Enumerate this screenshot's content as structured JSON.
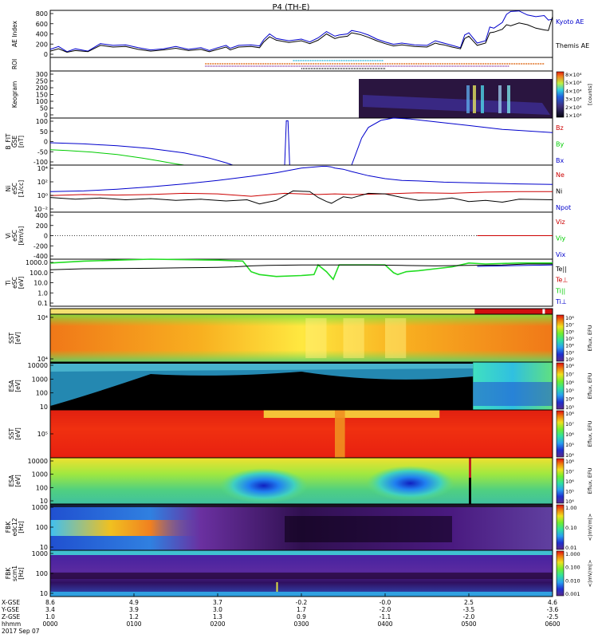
{
  "chart_data": {
    "type": "multi-panel summary plot",
    "title": "P4 (TH-E)",
    "panels": [
      {
        "id": "ae",
        "ylabel": [
          "AE Index"
        ],
        "yticks": [
          "800",
          "600",
          "400",
          "200",
          "0"
        ],
        "ylim": [
          -10,
          810
        ],
        "right_labels": [
          {
            "text": "Kyoto AE",
            "color": "#0000cc"
          },
          {
            "text": "Themis AE",
            "color": "#000000"
          }
        ],
        "series": [
          {
            "name": "Kyoto AE",
            "color": "#0000cc",
            "t": [
              0,
              10,
              20,
              30,
              45,
              60,
              75,
              90,
              105,
              120,
              135,
              150,
              165,
              180,
              190,
              200,
              210,
              215,
              225,
              240,
              250,
              255,
              262,
              270,
              285,
              300,
              310,
              320,
              330,
              340,
              345,
              355,
              360,
              370,
              380,
              390,
              400,
              410,
              420,
              435,
              450,
              460,
              465,
              470,
              480,
              490,
              495,
              500,
              510,
              520,
              525,
              530,
              540,
              545,
              550,
              560,
              570,
              580,
              590,
              595,
              600
            ],
            "v": [
              130,
              180,
              90,
              140,
              100,
              230,
              200,
              210,
              160,
              120,
              140,
              180,
              130,
              160,
              110,
              160,
              200,
              150,
              200,
              210,
              190,
              300,
              400,
              320,
              280,
              310,
              260,
              330,
              440,
              360,
              380,
              400,
              460,
              430,
              380,
              310,
              260,
              220,
              240,
              210,
              200,
              280,
              260,
              240,
              200,
              160,
              380,
              420,
              240,
              280,
              520,
              500,
              600,
              740,
              790,
              800,
              730,
              700,
              720,
              640,
              660
            ]
          },
          {
            "name": "Themis AE",
            "color": "#000000",
            "t": [
              0,
              10,
              20,
              30,
              45,
              60,
              75,
              90,
              105,
              120,
              135,
              150,
              165,
              180,
              190,
              200,
              210,
              215,
              225,
              240,
              250,
              255,
              262,
              270,
              285,
              300,
              310,
              320,
              330,
              340,
              345,
              355,
              360,
              370,
              380,
              390,
              400,
              410,
              420,
              435,
              450,
              460,
              465,
              470,
              480,
              490,
              495,
              500,
              510,
              520,
              525,
              530,
              540,
              545,
              550,
              560,
              570,
              580,
              590,
              595,
              600
            ],
            "v": [
              100,
              140,
              80,
              110,
              90,
              200,
              170,
              180,
              130,
              100,
              120,
              150,
              110,
              130,
              90,
              130,
              170,
              120,
              170,
              180,
              160,
              260,
              350,
              290,
              250,
              280,
              230,
              290,
              400,
              320,
              340,
              360,
              420,
              390,
              340,
              280,
              230,
              190,
              210,
              180,
              170,
              240,
              220,
              210,
              170,
              140,
              320,
              360,
              200,
              240,
              420,
              430,
              480,
              560,
              540,
              590,
              560,
              500,
              470,
              460,
              700
            ]
          }
        ]
      },
      {
        "id": "roi",
        "ylabel": [
          "ROI"
        ],
        "yticks": [],
        "ylim": [
          0,
          1
        ]
      },
      {
        "id": "keogram",
        "ylabel": [
          "Keogram"
        ],
        "yticks": [
          "300",
          "250",
          "200",
          "150",
          "100",
          "50",
          "0"
        ],
        "ylim": [
          0,
          300
        ],
        "colorbar": {
          "label": "[counts]",
          "ticks": [
            "8×10⁴",
            "5×10⁴",
            "4×10⁴",
            "3×10⁴",
            "2×10⁴",
            "1×10⁴"
          ]
        }
      },
      {
        "id": "bfit",
        "ylabel": [
          "B_FIT",
          "GSE",
          "[nT]"
        ],
        "yticks": [
          "100",
          "50",
          "0",
          "-50",
          "-100"
        ],
        "ylim": [
          -100,
          100
        ],
        "right_labels": [
          {
            "text": "Bz",
            "color": "#cc0000"
          },
          {
            "text": "By",
            "color": "#00cc00"
          },
          {
            "text": "Bx",
            "color": "#0000cc"
          }
        ],
        "series": [
          {
            "name": "Bx",
            "color": "#0000cc",
            "t": [
              0,
              40,
              80,
              120,
              160,
              190,
              210,
              218,
              280,
              282,
              284,
              286,
              360,
              372,
              380,
              395,
              410,
              430,
              460,
              500,
              540,
              600
            ],
            "v": [
              -5,
              -10,
              -18,
              -30,
              -48,
              -70,
              -90,
              -100,
              -100,
              88,
              88,
              -100,
              -100,
              15,
              60,
              90,
              100,
              96,
              84,
              68,
              52,
              38
            ]
          },
          {
            "name": "By",
            "color": "#00cc00",
            "t": [
              0,
              20,
              50,
              80,
              110,
              130,
              150,
              160
            ],
            "v": [
              -35,
              -38,
              -45,
              -55,
              -70,
              -82,
              -95,
              -100
            ]
          }
        ]
      },
      {
        "id": "ni",
        "ylabel": [
          "Ni",
          "eSC",
          "[1/cc]"
        ],
        "yticks": [
          "10⁴",
          "10²",
          "10⁰",
          "10⁻²"
        ],
        "ylim": [
          -3,
          5
        ],
        "right_labels": [
          {
            "text": "Ne",
            "color": "#cc0000"
          },
          {
            "text": "Ni",
            "color": "#000000"
          },
          {
            "text": "Npot",
            "color": "#0000cc"
          }
        ],
        "series": [
          {
            "name": "Npot",
            "color": "#0000cc",
            "t": [
              0,
              40,
              80,
              120,
              160,
              200,
              240,
              270,
              300,
              325,
              330,
              335,
              340,
              350,
              360,
              380,
              400,
              420,
              440,
              470,
              500,
              530,
              560,
              600
            ],
            "v": [
              0.5,
              0.6,
              0.9,
              1.3,
              1.8,
              2.4,
              3.1,
              3.7,
              4.5,
              4.8,
              4.8,
              4.7,
              4.5,
              4.3,
              3.9,
              3.2,
              2.7,
              2.4,
              2.3,
              2.1,
              2.0,
              1.9,
              1.8,
              1.7
            ]
          },
          {
            "name": "Ne",
            "color": "#cc0000",
            "t": [
              0,
              40,
              80,
              120,
              160,
              200,
              240,
              280,
              320,
              340,
              360,
              400,
              440,
              480,
              520,
              560,
              600
            ],
            "v": [
              -0.2,
              0.0,
              -0.1,
              0.0,
              0.2,
              0.1,
              -0.3,
              0.2,
              0.0,
              0.1,
              0.0,
              0.1,
              0.3,
              0.2,
              0.4,
              0.5,
              0.5
            ]
          },
          {
            "name": "Ni",
            "color": "#000000",
            "t": [
              0,
              30,
              60,
              90,
              120,
              150,
              180,
              210,
              235,
              250,
              270,
              290,
              310,
              320,
              330,
              336,
              342,
              350,
              360,
              380,
              400,
              420,
              440,
              460,
              480,
              500,
              520,
              540,
              560,
              600
            ],
            "v": [
              -0.5,
              -0.8,
              -0.6,
              -0.9,
              -0.7,
              -1.0,
              -0.8,
              -1.1,
              -0.9,
              -1.6,
              -1.0,
              0.6,
              0.5,
              -0.5,
              -1.2,
              -1.5,
              -1.0,
              -0.4,
              -0.6,
              0.2,
              0.1,
              -0.5,
              -1.0,
              -0.9,
              -0.6,
              -1.2,
              -1.0,
              -1.3,
              -0.8,
              -0.9
            ]
          }
        ]
      },
      {
        "id": "vi",
        "ylabel": [
          "Vi",
          "eSC",
          "[km/s]"
        ],
        "yticks": [
          "400",
          "200",
          "0",
          "-200",
          "-400"
        ],
        "ylim": [
          -500,
          500
        ],
        "right_labels": [
          {
            "text": "Viz",
            "color": "#cc0000"
          },
          {
            "text": "Viy",
            "color": "#00cc00"
          },
          {
            "text": "Vix",
            "color": "#0000cc"
          }
        ],
        "series": [
          {
            "name": "Viz",
            "color": "#cc0000",
            "t": [
              510,
              600
            ],
            "v": [
              0,
              0
            ]
          }
        ]
      },
      {
        "id": "ti",
        "ylabel": [
          "Ti",
          "eSC",
          "[eV]"
        ],
        "yticks": [
          "1000.0",
          "100.0",
          "10.0",
          "1.0",
          "0.1"
        ],
        "ylim": [
          -1.3,
          3.6
        ],
        "right_labels": [
          {
            "text": "Te||",
            "color": "#000000"
          },
          {
            "text": "Te⊥",
            "color": "#cc0000"
          },
          {
            "text": "Ti||",
            "color": "#00cc00"
          },
          {
            "text": "Ti⊥",
            "color": "#0000cc"
          }
        ],
        "series": [
          {
            "name": "Ti",
            "color": "#22dd22",
            "t": [
              0,
              40,
              80,
              120,
              160,
              200,
              230,
              240,
              250,
              270,
              300,
              315,
              320,
              330,
              338,
              345,
              360,
              380,
              400,
              410,
              415,
              425,
              440,
              460,
              480,
              500,
              520,
              560,
              600
            ],
            "v": [
              3.2,
              3.4,
              3.5,
              3.6,
              3.55,
              3.5,
              3.4,
              2.3,
              2.0,
              1.8,
              1.9,
              2.0,
              3.0,
              2.3,
              1.5,
              3.0,
              3.0,
              3.0,
              3.0,
              2.2,
              2.0,
              2.3,
              2.4,
              2.6,
              2.8,
              3.2,
              3.1,
              3.2,
              3.2
            ]
          },
          {
            "name": "Te||",
            "color": "#000000",
            "t": [
              0,
              40,
              80,
              120,
              160,
              200,
              220,
              240,
              260,
              300,
              340,
              380,
              420,
              460,
              500,
              540,
              570,
              600
            ],
            "v": [
              2.5,
              2.6,
              2.62,
              2.65,
              2.7,
              2.75,
              2.8,
              2.9,
              2.95,
              3.0,
              3.0,
              3.0,
              2.95,
              2.9,
              2.95,
              3.0,
              3.1,
              3.1
            ]
          },
          {
            "name": "Ti⊥",
            "color": "#0000cc",
            "t": [
              510,
              540,
              570,
              600
            ],
            "v": [
              2.85,
              2.9,
              2.95,
              3.0
            ]
          }
        ]
      },
      {
        "id": "flag",
        "ylabel": [],
        "yticks": [],
        "ylim": [
          0,
          1
        ]
      },
      {
        "id": "sst1",
        "ylabel": [
          "SST",
          "[eV]"
        ],
        "yticks": [
          "10⁴",
          "10⁴"
        ],
        "ylim": [
          0,
          1
        ],
        "colorbar": {
          "label": "Eflux, EFU",
          "ticks": [
            "10⁸",
            "10⁷",
            "10⁶",
            "10⁵",
            "10⁴",
            "10³",
            "10²"
          ]
        }
      },
      {
        "id": "esa1",
        "ylabel": [
          "ESA",
          "[eV]"
        ],
        "yticks": [
          "10000",
          "1000",
          "100",
          "10"
        ],
        "ylim": [
          0,
          1
        ],
        "colorbar": {
          "label": "Eflux, EFU",
          "ticks": [
            "10⁸",
            "10⁷",
            "10⁶",
            "10⁵",
            "10⁴",
            "10³"
          ]
        }
      },
      {
        "id": "sst2",
        "ylabel": [
          "SST",
          "[eV]"
        ],
        "yticks": [
          "10⁵"
        ],
        "ylim": [
          0,
          1
        ],
        "colorbar": {
          "label": "Eflux, EFU",
          "ticks": [
            "10⁸",
            "10⁷",
            "10⁶",
            "10⁵",
            "10⁴"
          ]
        }
      },
      {
        "id": "esa2",
        "ylabel": [
          "ESA",
          "[eV]"
        ],
        "yticks": [
          "10000",
          "1000",
          "100",
          "10"
        ],
        "ylim": [
          0,
          1
        ],
        "colorbar": {
          "label": "Eflux, EFU",
          "ticks": [
            "10⁸",
            "10⁷",
            "10⁶",
            "10⁵",
            "10⁴"
          ]
        }
      },
      {
        "id": "fbk1",
        "ylabel": [
          "FBK",
          "edc12",
          "[Hz]"
        ],
        "yticks": [
          "1000",
          "100",
          "10"
        ],
        "ylim": [
          0,
          1
        ],
        "colorbar": {
          "label": "<|mV/m|>",
          "ticks": [
            "1.00",
            "0.10",
            "0.01"
          ]
        }
      },
      {
        "id": "fbk2",
        "ylabel": [
          "FBK",
          "scm1",
          "[Hz]"
        ],
        "yticks": [
          "1000",
          "100",
          "10"
        ],
        "ylim": [
          0,
          1
        ],
        "colorbar": {
          "label": "<|mV/m|>",
          "ticks": [
            "1.000",
            "0.100",
            "0.010",
            "0.001"
          ]
        }
      }
    ],
    "xaxis": {
      "row_labels": [
        "X-GSE",
        "Y-GSE",
        "Z-GSE",
        "hhmm",
        "2017 Sep 07"
      ],
      "columns": [
        [
          "8.6",
          "3.4",
          "1.0",
          "0000"
        ],
        [
          "4.9",
          "3.9",
          "1.2",
          "0100"
        ],
        [
          "3.7",
          "3.0",
          "1.3",
          "0200"
        ],
        [
          "-0.2",
          "1.7",
          "0.9",
          "0300"
        ],
        [
          "-0.0",
          "-2.0",
          "-1.1",
          "0400"
        ],
        [
          "2.5",
          "-3.5",
          "-2.0",
          "0500"
        ],
        [
          "4.6",
          "-3.6",
          "-2.5",
          "0600"
        ]
      ],
      "time_ticks": [
        0,
        100,
        200,
        300,
        400,
        500,
        600
      ]
    }
  }
}
